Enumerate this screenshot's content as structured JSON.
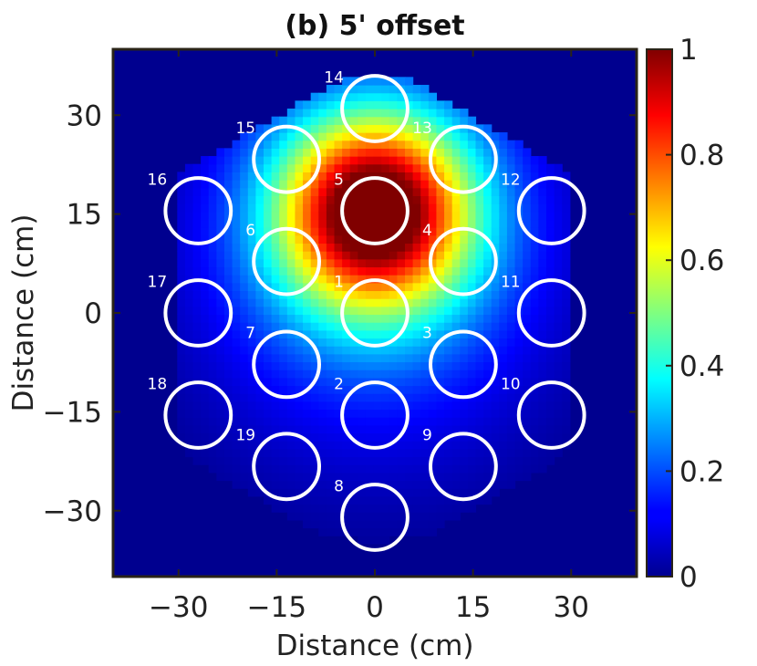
{
  "chart_data": {
    "type": "heatmap",
    "title": "(b) 5' offset",
    "xlabel": "Distance (cm)",
    "ylabel": "Distance (cm)",
    "xlim": [
      -40,
      40
    ],
    "ylim": [
      -40,
      40
    ],
    "xticks": [
      -30,
      -15,
      0,
      15,
      30
    ],
    "yticks": [
      30,
      15,
      0,
      -15,
      -30
    ],
    "xtick_labels": [
      "−30",
      "−15",
      "0",
      "15",
      "30"
    ],
    "ytick_labels": [
      "30",
      "15",
      "0",
      "−15",
      "−30"
    ],
    "colorbar": {
      "range": [
        0,
        1
      ],
      "ticks": [
        0,
        0.2,
        0.4,
        0.6,
        0.8,
        1
      ],
      "tick_labels": [
        "0",
        "0.2",
        "0.4",
        "0.6",
        "0.8",
        "1"
      ],
      "colormap": "jet"
    },
    "field": {
      "description": "normalized intensity, peak 1 near rod 5",
      "peak_value": 1.0,
      "peak_center": [
        0,
        15.5
      ],
      "background_value": 0.0
    },
    "rod_radius": 5,
    "rods": [
      {
        "label": "1",
        "x": 0,
        "y": 0
      },
      {
        "label": "2",
        "x": 0,
        "y": -15.5
      },
      {
        "label": "3",
        "x": 13.5,
        "y": -7.8
      },
      {
        "label": "4",
        "x": 13.5,
        "y": 7.8
      },
      {
        "label": "5",
        "x": 0,
        "y": 15.5
      },
      {
        "label": "6",
        "x": -13.5,
        "y": 7.8
      },
      {
        "label": "7",
        "x": -13.5,
        "y": -7.8
      },
      {
        "label": "8",
        "x": 0,
        "y": -31
      },
      {
        "label": "9",
        "x": 13.5,
        "y": -23.3
      },
      {
        "label": "10",
        "x": 27,
        "y": -15.5
      },
      {
        "label": "11",
        "x": 27,
        "y": 0
      },
      {
        "label": "12",
        "x": 27,
        "y": 15.5
      },
      {
        "label": "13",
        "x": 13.5,
        "y": 23.3
      },
      {
        "label": "14",
        "x": 0,
        "y": 31
      },
      {
        "label": "15",
        "x": -13.5,
        "y": 23.3
      },
      {
        "label": "16",
        "x": -27,
        "y": 15.5
      },
      {
        "label": "17",
        "x": -27,
        "y": 0
      },
      {
        "label": "18",
        "x": -27,
        "y": -15.5
      },
      {
        "label": "19",
        "x": -13.5,
        "y": -23.3
      }
    ]
  },
  "colors": {
    "frame": "#2a2418",
    "rod_outline": "#ffffff"
  }
}
